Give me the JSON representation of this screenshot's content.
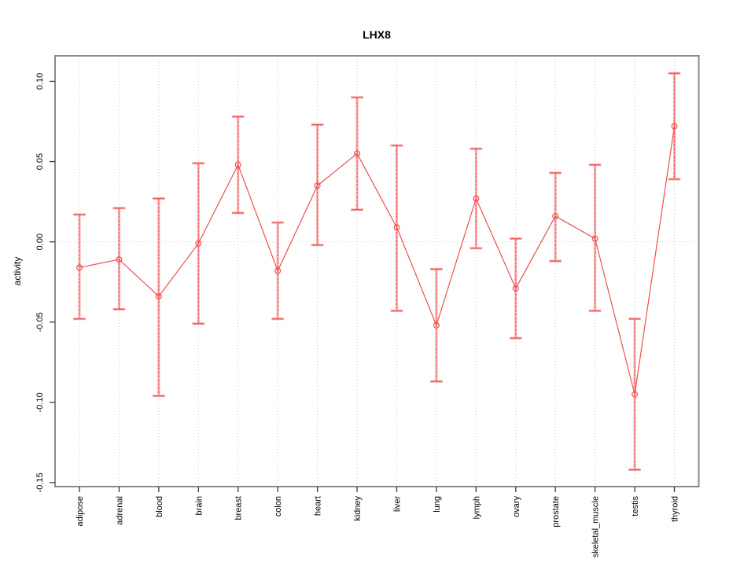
{
  "window": {
    "background": "#ffffff"
  },
  "chart_data": {
    "type": "line",
    "title": "LHX8",
    "xlabel": "",
    "ylabel": "activity",
    "marker": "open-circle",
    "legend": "none",
    "grid": {
      "vertical": "dotted line at each category",
      "horizontal": "dotted line at 0.00 only"
    },
    "categories": [
      "adipose",
      "adrenal",
      "blood",
      "brain",
      "breast",
      "colon",
      "heart",
      "kidney",
      "liver",
      "lung",
      "lymph",
      "ovary",
      "prostate",
      "skeletal_muscle",
      "testis",
      "thyroid"
    ],
    "values": [
      -0.016,
      -0.011,
      -0.034,
      -0.001,
      0.048,
      -0.018,
      0.035,
      0.055,
      0.009,
      -0.052,
      0.027,
      -0.029,
      0.016,
      0.002,
      -0.095,
      0.072
    ],
    "error_low": [
      -0.048,
      -0.042,
      -0.096,
      -0.051,
      0.018,
      -0.048,
      -0.002,
      0.02,
      -0.043,
      -0.087,
      -0.004,
      -0.06,
      -0.012,
      -0.043,
      -0.142,
      0.039
    ],
    "error_high": [
      0.017,
      0.021,
      0.027,
      0.049,
      0.078,
      0.012,
      0.073,
      0.09,
      0.06,
      -0.017,
      0.058,
      0.002,
      0.043,
      0.048,
      -0.048,
      0.105
    ],
    "y_tick_labels": [
      "0.10",
      "0.05",
      "0.00",
      "-0.05",
      "-0.10",
      "-0.15"
    ],
    "y_tick_values": [
      0.1,
      0.05,
      0.0,
      -0.05,
      -0.1,
      -0.15
    ],
    "ylim": [
      -0.1525,
      0.1159
    ],
    "colors": {
      "series": "#f04f4f",
      "error_bar": "#f25555",
      "error_bar_light": "#f8acac",
      "frame": "#8a8a8a",
      "tick": "#3a3a3a",
      "grid": "#c9c9c9",
      "text": "#000000"
    }
  }
}
